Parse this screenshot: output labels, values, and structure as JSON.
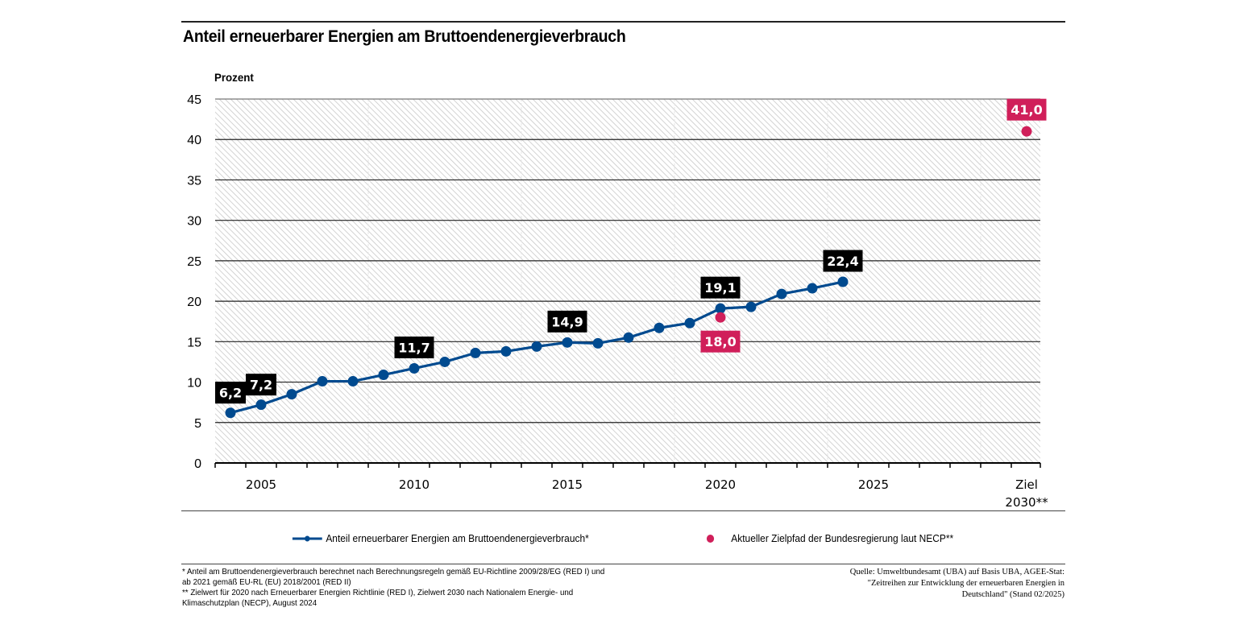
{
  "title": "Anteil erneuerbarer Energien am Bruttoendenergieverbrauch",
  "colors": {
    "series_line": "#004a8f",
    "target_point": "#d01f5a",
    "label_box_dark": "#000000",
    "label_box_target": "#d01f5a",
    "hatch": "#cfcfcf"
  },
  "chart_data": {
    "type": "line",
    "title": "Anteil erneuerbarer Energien am Bruttoendenergieverbrauch",
    "xlabel": "",
    "ylabel": "Prozent",
    "ylim": [
      0,
      45
    ],
    "yticks": [
      "0",
      "5",
      "10",
      "15",
      "20",
      "25",
      "30",
      "35",
      "40",
      "45"
    ],
    "categories": [
      "2004",
      "2005",
      "2006",
      "2007",
      "2008",
      "2009",
      "2010",
      "2011",
      "2012",
      "2013",
      "2014",
      "2015",
      "2016",
      "2017",
      "2018",
      "2019",
      "2020",
      "2021",
      "2022",
      "2023",
      "2024",
      "2025",
      "2026",
      "2027",
      "2028",
      "2029",
      "Ziel 2030**"
    ],
    "xtick_labels": [
      {
        "category": "2005",
        "text": "2005"
      },
      {
        "category": "2010",
        "text": "2010"
      },
      {
        "category": "2015",
        "text": "2015"
      },
      {
        "category": "2020",
        "text": "2020"
      },
      {
        "category": "2025",
        "text": "2025"
      },
      {
        "category": "Ziel 2030**",
        "text": "Ziel",
        "text2": "2030**"
      }
    ],
    "grid": true,
    "legend_position": "bottom",
    "series": [
      {
        "name": "Anteil erneuerbarer Energien am Bruttoendenergieverbrauch*",
        "type": "line",
        "x": [
          "2004",
          "2005",
          "2006",
          "2007",
          "2008",
          "2009",
          "2010",
          "2011",
          "2012",
          "2013",
          "2014",
          "2015",
          "2016",
          "2017",
          "2018",
          "2019",
          "2020",
          "2021",
          "2022",
          "2023",
          "2024"
        ],
        "values": [
          6.2,
          7.2,
          8.5,
          10.1,
          10.1,
          10.9,
          11.7,
          12.5,
          13.6,
          13.8,
          14.4,
          14.9,
          14.8,
          15.5,
          16.7,
          17.3,
          19.1,
          19.3,
          20.9,
          21.6,
          22.4
        ],
        "data_labels": [
          {
            "x": "2004",
            "text": "6,2"
          },
          {
            "x": "2005",
            "text": "7,2"
          },
          {
            "x": "2010",
            "text": "11,7"
          },
          {
            "x": "2015",
            "text": "14,9"
          },
          {
            "x": "2020",
            "text": "19,1"
          },
          {
            "x": "2024",
            "text": "22,4"
          }
        ]
      },
      {
        "name": "Aktueller Zielpfad der Bundesregierung laut NECP**",
        "type": "scatter",
        "x": [
          "2020",
          "Ziel 2030**"
        ],
        "values": [
          18.0,
          41.0
        ],
        "data_labels": [
          {
            "x": "2020",
            "text": "18,0",
            "position": "below"
          },
          {
            "x": "Ziel 2030**",
            "text": "41,0",
            "position": "above"
          }
        ]
      }
    ]
  },
  "legend": {
    "items": [
      {
        "label": "Anteil erneuerbarer Energien am Bruttoendenergieverbrauch*",
        "marker": "line-with-dot"
      },
      {
        "label": "Aktueller Zielpfad der Bundesregierung laut NECP**",
        "marker": "dot"
      }
    ]
  },
  "footnotes": [
    "*  Anteil am Bruttoendenergieverbrauch berechnet nach  Berechnungsregeln gemäß EU-Richtline 2009/28/EG (RED I) und",
    "ab 2021 gemäß EU-RL (EU) 2018/2001 (RED II)",
    "** Zielwert für 2020 nach Erneuerbarer Energien Richtlinie (RED I), Zielwert 2030 nach Nationalem Energie- und",
    "Klimaschutzplan (NECP), August 2024"
  ],
  "source": [
    "Quelle: Umweltbundesamt (UBA) auf Basis UBA, AGEE-Stat:",
    "\"Zeitreihen zur Entwicklung der erneuerbaren Energien in",
    "Deutschland\" (Stand 02/2025)"
  ]
}
